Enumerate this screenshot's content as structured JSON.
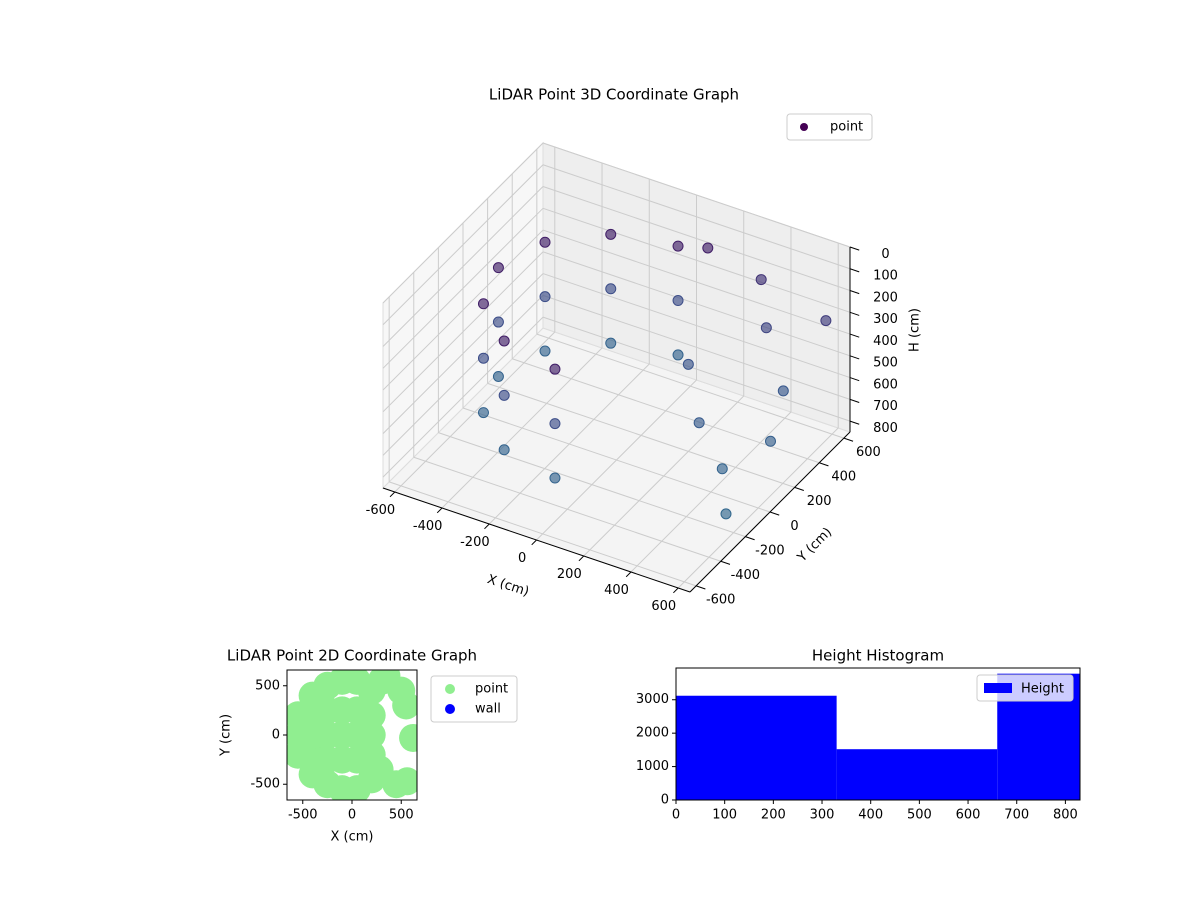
{
  "chart_data": [
    {
      "type": "scatter3d",
      "title": "LiDAR Point 3D Coordinate Graph",
      "x_label": "X (cm)",
      "y_label": "Y (cm)",
      "z_label": "H (cm)",
      "legend": "upper right",
      "series": [
        {
          "name": "point",
          "color": "#440154",
          "cmap": [
            "#440154",
            "#3b528b",
            "#2c728e"
          ],
          "x": [
            0,
            -250,
            -433,
            -500,
            -433,
            -250,
            0,
            0,
            -250,
            -433,
            -500,
            -433,
            -250,
            0,
            0,
            -250,
            -433,
            -500,
            -433,
            -250,
            0,
            300,
            400,
            550,
            600,
            500,
            620,
            200,
            350,
            100,
            600
          ],
          "y": [
            500,
            433,
            250,
            0,
            -250,
            -433,
            -500,
            500,
            433,
            250,
            0,
            -250,
            -433,
            -500,
            500,
            433,
            250,
            0,
            -250,
            -433,
            -500,
            600,
            450,
            300,
            100,
            -100,
            -300,
            200,
            0,
            550,
            550
          ],
          "z": [
            150,
            150,
            150,
            150,
            150,
            150,
            150,
            400,
            400,
            400,
            400,
            400,
            400,
            400,
            650,
            650,
            650,
            650,
            650,
            650,
            650,
            250,
            350,
            500,
            600,
            650,
            700,
            450,
            550,
            150,
            300
          ]
        }
      ],
      "xlim": [
        -650,
        650
      ],
      "ylim": [
        -650,
        650
      ],
      "zlim": [
        850,
        0
      ],
      "xticks": [
        -600,
        -400,
        -200,
        0,
        200,
        400,
        600
      ],
      "yticks": [
        -600,
        -400,
        -200,
        0,
        200,
        400,
        600
      ],
      "zticks": [
        0,
        100,
        200,
        300,
        400,
        500,
        600,
        700,
        800
      ],
      "grid": true
    },
    {
      "type": "scatter",
      "title": "LiDAR Point 2D Coordinate Graph",
      "x_label": "X (cm)",
      "y_label": "Y (cm)",
      "legend": "outside right",
      "series": [
        {
          "name": "point",
          "color": "#90ee90",
          "x": [
            -550,
            -550,
            -550,
            -400,
            -400,
            -400,
            -400,
            -400,
            -250,
            -250,
            -250,
            -250,
            -250,
            -100,
            -100,
            -100,
            -100,
            -100,
            50,
            50,
            50,
            50,
            50,
            200,
            200,
            200,
            200,
            200,
            300,
            280,
            500,
            550,
            620,
            450,
            560,
            350
          ],
          "y": [
            -200,
            0,
            200,
            -400,
            -200,
            0,
            200,
            400,
            -500,
            -250,
            0,
            250,
            500,
            -550,
            -250,
            0,
            250,
            550,
            -550,
            -250,
            0,
            250,
            550,
            -450,
            -200,
            0,
            200,
            450,
            550,
            -350,
            450,
            300,
            -30,
            -500,
            -470,
            600
          ]
        },
        {
          "name": "wall",
          "color": "#0000ff",
          "x": [],
          "y": []
        }
      ],
      "xlim": [
        -660,
        660
      ],
      "ylim": [
        -660,
        660
      ],
      "xticks": [
        -500,
        0,
        500
      ],
      "yticks": [
        -500,
        0,
        500
      ]
    },
    {
      "type": "histogram",
      "title": "Height Histogram",
      "legend": "upper right",
      "series": [
        {
          "name": "Height",
          "color": "#0000ff",
          "bins": [
            0,
            330,
            660,
            830
          ],
          "values": [
            3120,
            1520,
            3780
          ]
        }
      ],
      "xlim": [
        0,
        830
      ],
      "ylim": [
        0,
        3950
      ],
      "xticks": [
        0,
        100,
        200,
        300,
        400,
        500,
        600,
        700,
        800
      ],
      "yticks": [
        0,
        1000,
        2000,
        3000
      ]
    }
  ]
}
